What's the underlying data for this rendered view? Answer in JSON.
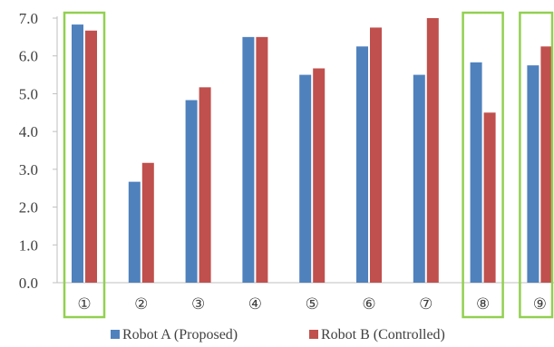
{
  "chart_data": {
    "type": "bar",
    "categories": [
      "①",
      "②",
      "③",
      "④",
      "⑤",
      "⑥",
      "⑦",
      "⑧",
      "⑨"
    ],
    "series": [
      {
        "name": "Robot A (Proposed)",
        "color": "#4f81bd",
        "values": [
          6.83,
          2.67,
          4.83,
          6.5,
          5.5,
          6.25,
          5.5,
          5.83,
          5.75
        ]
      },
      {
        "name": "Robot B (Controlled)",
        "color": "#c0504d",
        "values": [
          6.67,
          3.17,
          5.17,
          6.5,
          5.67,
          6.75,
          7.0,
          4.5,
          6.25
        ]
      }
    ],
    "yticks": [
      "0.0",
      "1.0",
      "2.0",
      "3.0",
      "4.0",
      "5.0",
      "6.0",
      "7.0"
    ],
    "ylim": [
      0,
      7
    ],
    "grid": false,
    "legend": "bottom",
    "highlighted_categories": [
      "①",
      "⑧",
      "⑨"
    ],
    "highlight_color": "#92d050"
  }
}
